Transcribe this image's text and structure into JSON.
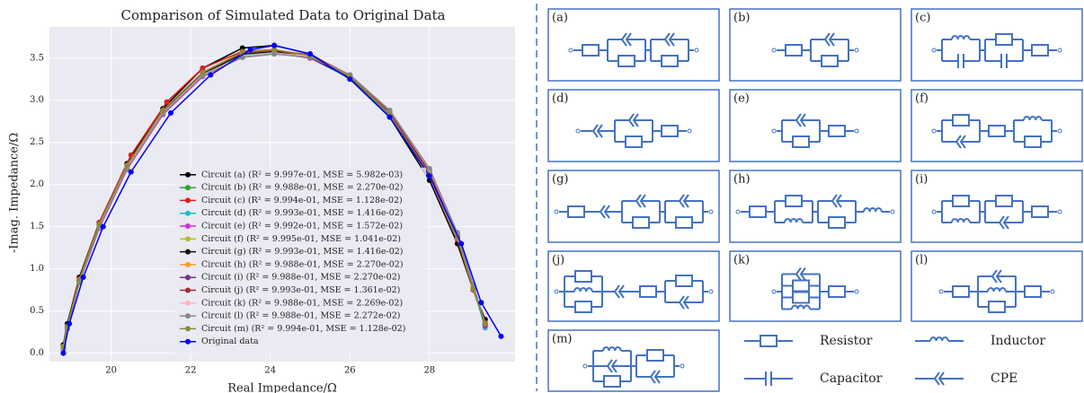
{
  "chart_data": {
    "type": "line",
    "title": "Comparison of Simulated Data to Original Data",
    "xlabel": "Real Impedance/Ω",
    "ylabel": "-Imag. Impedance/Ω",
    "xlim": [
      18.45,
      30.15
    ],
    "ylim": [
      -0.1,
      3.87
    ],
    "xticks": [
      20,
      22,
      24,
      26,
      28
    ],
    "yticks": [
      {
        "value": 0,
        "label": "0.0"
      },
      0.5,
      {
        "value": 1,
        "label": "1.0"
      },
      1.5,
      {
        "value": 2,
        "label": "2.0"
      },
      2.5,
      {
        "value": 3,
        "label": "3.0"
      },
      3.5
    ],
    "grid": true,
    "legend": "lower center",
    "series": [
      {
        "name": "Circuit (a) (R² = 9.997e-01, MSE = 5.982e-03)",
        "color": "#000000",
        "x": [
          18.8,
          18.9,
          19.2,
          19.7,
          20.4,
          21.3,
          22.3,
          23.3,
          24.1,
          25.0,
          26.0,
          27.0,
          28.0,
          28.7,
          29.1,
          29.4
        ],
        "values": [
          0.1,
          0.35,
          0.9,
          1.55,
          2.25,
          2.9,
          3.38,
          3.62,
          3.65,
          3.55,
          3.28,
          2.8,
          2.05,
          1.3,
          0.75,
          0.4
        ]
      },
      {
        "name": "Circuit (b) (R² = 9.988e-01, MSE = 2.270e-02)",
        "color": "#2ca02c",
        "x": [
          18.8,
          18.9,
          19.2,
          19.7,
          20.4,
          21.3,
          22.3,
          23.3,
          24.1,
          25.0,
          26.0,
          27.0,
          28.0,
          28.7,
          29.1,
          29.4
        ],
        "values": [
          0.05,
          0.3,
          0.85,
          1.5,
          2.2,
          2.85,
          3.3,
          3.52,
          3.56,
          3.52,
          3.3,
          2.88,
          2.18,
          1.42,
          0.8,
          0.35
        ]
      },
      {
        "name": "Circuit (c) (R² = 9.994e-01, MSE = 1.128e-02)",
        "color": "#e31a1c",
        "x": [
          18.8,
          18.9,
          19.2,
          19.7,
          20.5,
          21.4,
          22.3,
          23.3,
          24.1,
          25.0,
          26.0,
          27.0,
          28.0,
          28.7,
          29.1,
          29.4
        ],
        "values": [
          0.05,
          0.32,
          0.88,
          1.55,
          2.35,
          2.98,
          3.38,
          3.58,
          3.6,
          3.52,
          3.27,
          2.82,
          2.1,
          1.35,
          0.75,
          0.35
        ]
      },
      {
        "name": "Circuit (d) (R² = 9.993e-01, MSE = 1.416e-02)",
        "color": "#17becf",
        "x": [
          18.8,
          18.9,
          19.2,
          19.7,
          20.4,
          21.3,
          22.3,
          23.3,
          24.1,
          25.0,
          26.0,
          27.0,
          28.0,
          28.7,
          29.1,
          29.4
        ],
        "values": [
          0.05,
          0.3,
          0.85,
          1.5,
          2.2,
          2.85,
          3.3,
          3.54,
          3.57,
          3.5,
          3.26,
          2.82,
          2.12,
          1.38,
          0.78,
          0.3
        ]
      },
      {
        "name": "Circuit (e) (R² = 9.992e-01, MSE = 1.572e-02)",
        "color": "#d62cd6",
        "x": [
          18.8,
          18.9,
          19.2,
          19.7,
          20.4,
          21.3,
          22.3,
          23.3,
          24.1,
          25.0,
          26.0,
          27.0,
          28.0,
          28.7,
          29.1,
          29.4
        ],
        "values": [
          0.05,
          0.3,
          0.84,
          1.48,
          2.18,
          2.83,
          3.28,
          3.52,
          3.56,
          3.5,
          3.27,
          2.84,
          2.14,
          1.4,
          0.8,
          0.32
        ]
      },
      {
        "name": "Circuit (f) (R² = 9.995e-01, MSE = 1.041e-02)",
        "color": "#bcbd22",
        "x": [
          18.8,
          18.9,
          19.2,
          19.7,
          20.4,
          21.3,
          22.3,
          23.3,
          24.1,
          25.0,
          26.0,
          27.0,
          28.0,
          28.7,
          29.1,
          29.4
        ],
        "values": [
          0.08,
          0.32,
          0.86,
          1.52,
          2.22,
          2.87,
          3.32,
          3.56,
          3.6,
          3.53,
          3.29,
          2.86,
          2.16,
          1.4,
          0.78,
          0.36
        ]
      },
      {
        "name": "Circuit (g) (R² = 9.993e-01, MSE = 1.416e-02)",
        "color": "#111111",
        "x": [
          18.8,
          18.9,
          19.2,
          19.7,
          20.4,
          21.3,
          22.3,
          23.3,
          24.1,
          25.0,
          26.0,
          27.0,
          28.0,
          28.7,
          29.1,
          29.4
        ],
        "values": [
          0.06,
          0.31,
          0.86,
          1.51,
          2.21,
          2.86,
          3.31,
          3.55,
          3.58,
          3.51,
          3.27,
          2.83,
          2.12,
          1.37,
          0.77,
          0.34
        ]
      },
      {
        "name": "Circuit (h) (R² = 9.988e-01, MSE = 2.270e-02)",
        "color": "#ff9f1c",
        "x": [
          18.8,
          18.9,
          19.2,
          19.7,
          20.4,
          21.3,
          22.3,
          23.3,
          24.1,
          25.0,
          26.0,
          27.0,
          28.0,
          28.7,
          29.1,
          29.4
        ],
        "values": [
          0.05,
          0.3,
          0.85,
          1.5,
          2.2,
          2.85,
          3.3,
          3.52,
          3.56,
          3.52,
          3.3,
          2.88,
          2.18,
          1.42,
          0.8,
          0.35
        ]
      },
      {
        "name": "Circuit (i) (R² = 9.988e-01, MSE = 2.270e-02)",
        "color": "#7b2d8b",
        "x": [
          18.8,
          18.9,
          19.2,
          19.7,
          20.4,
          21.3,
          22.3,
          23.3,
          24.1,
          25.0,
          26.0,
          27.0,
          28.0,
          28.7,
          29.1,
          29.4
        ],
        "values": [
          0.04,
          0.29,
          0.84,
          1.49,
          2.19,
          2.84,
          3.29,
          3.51,
          3.55,
          3.51,
          3.29,
          2.87,
          2.17,
          1.41,
          0.79,
          0.34
        ]
      },
      {
        "name": "Circuit (j) (R² = 9.993e-01, MSE = 1.361e-02)",
        "color": "#a52a2a",
        "x": [
          18.8,
          18.9,
          19.2,
          19.7,
          20.4,
          21.3,
          22.3,
          23.3,
          24.1,
          25.0,
          26.0,
          27.0,
          28.0,
          28.7,
          29.1,
          29.4
        ],
        "values": [
          0.06,
          0.31,
          0.87,
          1.53,
          2.23,
          2.88,
          3.33,
          3.56,
          3.59,
          3.54,
          3.3,
          2.86,
          2.14,
          1.38,
          0.77,
          0.36
        ]
      },
      {
        "name": "Circuit (k) (R² = 9.988e-01, MSE = 2.269e-02)",
        "color": "#ffb6c1",
        "x": [
          18.8,
          18.9,
          19.2,
          19.7,
          20.4,
          21.3,
          22.3,
          23.3,
          24.1,
          25.0,
          26.0,
          27.0,
          28.0,
          28.7,
          29.1,
          29.4
        ],
        "values": [
          0.05,
          0.3,
          0.85,
          1.5,
          2.2,
          2.85,
          3.3,
          3.52,
          3.56,
          3.52,
          3.3,
          2.88,
          2.18,
          1.42,
          0.8,
          0.35
        ]
      },
      {
        "name": "Circuit (l) (R² = 9.988e-01, MSE = 2.272e-02)",
        "color": "#888888",
        "x": [
          18.8,
          18.9,
          19.2,
          19.7,
          20.4,
          21.3,
          22.3,
          23.3,
          24.1,
          25.0,
          26.0,
          27.0,
          28.0,
          28.7,
          29.1,
          29.4
        ],
        "values": [
          0.05,
          0.3,
          0.84,
          1.49,
          2.19,
          2.84,
          3.29,
          3.51,
          3.55,
          3.51,
          3.3,
          2.88,
          2.19,
          1.43,
          0.81,
          0.35
        ]
      },
      {
        "name": "Circuit (m) (R² = 9.994e-01, MSE = 1.128e-02)",
        "color": "#8b8b3a",
        "x": [
          18.8,
          18.9,
          19.2,
          19.7,
          20.4,
          21.3,
          22.3,
          23.3,
          24.1,
          25.0,
          26.0,
          27.0,
          28.0,
          28.7,
          29.1,
          29.4
        ],
        "values": [
          0.07,
          0.32,
          0.87,
          1.53,
          2.23,
          2.88,
          3.33,
          3.57,
          3.6,
          3.53,
          3.28,
          2.83,
          2.11,
          1.36,
          0.76,
          0.35
        ]
      },
      {
        "name": "Original data",
        "color": "#0000ff",
        "x": [
          18.8,
          18.95,
          19.3,
          19.8,
          20.5,
          21.5,
          22.5,
          23.5,
          24.1,
          25.0,
          26.0,
          27.0,
          28.0,
          28.8,
          29.3,
          29.8
        ],
        "values": [
          0.0,
          0.35,
          0.9,
          1.5,
          2.15,
          2.85,
          3.3,
          3.6,
          3.65,
          3.55,
          3.25,
          2.8,
          2.1,
          1.3,
          0.6,
          0.2
        ]
      }
    ]
  },
  "diagram": {
    "panels": [
      "(a)",
      "(b)",
      "(c)",
      "(d)",
      "(e)",
      "(f)",
      "(g)",
      "(h)",
      "(i)",
      "(j)",
      "(k)",
      "(l)",
      "(m)"
    ],
    "symbols": [
      "Resistor",
      "Inductor",
      "Capacitor",
      "CPE"
    ]
  }
}
